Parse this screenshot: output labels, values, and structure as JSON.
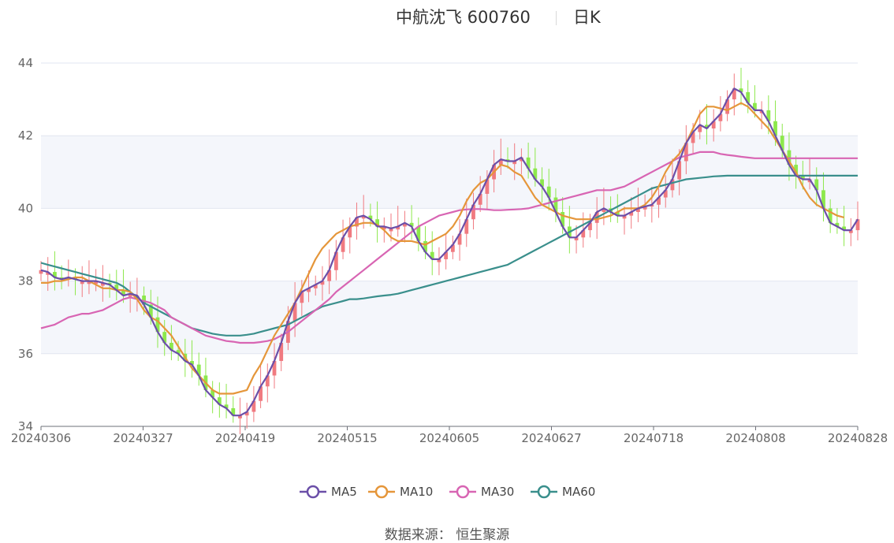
{
  "header": {
    "name": "中航沈飞 600760",
    "period": "日K"
  },
  "source": "数据来源：  恒生聚源",
  "colors": {
    "up": "#f07a80",
    "down": "#8de84c",
    "ma5": "#6b4fa8",
    "ma10": "#e5963a",
    "ma30": "#d865b3",
    "ma60": "#3a8f8c",
    "band": "#f4f6fb",
    "grid": "#e2e6f0"
  },
  "chart_data": {
    "type": "candlestick",
    "x_ticks": [
      "20240306",
      "20240327",
      "20240419",
      "20240515",
      "20240605",
      "20240627",
      "20240718",
      "20240808",
      "20240828"
    ],
    "ylim": [
      34,
      44
    ],
    "y_ticks": [
      "34",
      "36",
      "38",
      "40",
      "42",
      "44"
    ],
    "legend": [
      "MA5",
      "MA10",
      "MA30",
      "MA60"
    ],
    "legend_position": "bottom",
    "n_points": 120,
    "ma5": [
      38.3,
      38.25,
      38.1,
      38.05,
      38.1,
      38.05,
      38.0,
      38.0,
      38.0,
      37.95,
      37.9,
      37.75,
      37.6,
      37.65,
      37.6,
      37.35,
      37.0,
      36.6,
      36.3,
      36.1,
      36.0,
      35.8,
      35.7,
      35.4,
      35.0,
      34.8,
      34.6,
      34.5,
      34.3,
      34.3,
      34.4,
      34.7,
      35.1,
      35.4,
      35.8,
      36.3,
      36.9,
      37.4,
      37.7,
      37.8,
      37.9,
      38.0,
      38.3,
      38.8,
      39.2,
      39.5,
      39.75,
      39.8,
      39.7,
      39.5,
      39.5,
      39.45,
      39.5,
      39.6,
      39.5,
      39.1,
      38.8,
      38.6,
      38.6,
      38.8,
      39.0,
      39.3,
      39.7,
      40.1,
      40.4,
      40.8,
      41.2,
      41.35,
      41.3,
      41.3,
      41.4,
      41.1,
      40.8,
      40.6,
      40.3,
      39.9,
      39.5,
      39.2,
      39.2,
      39.4,
      39.6,
      39.9,
      40.0,
      39.9,
      39.8,
      39.8,
      39.9,
      40.0,
      40.05,
      40.1,
      40.3,
      40.5,
      40.8,
      41.3,
      41.8,
      42.1,
      42.3,
      42.2,
      42.4,
      42.6,
      43.0,
      43.3,
      43.2,
      42.9,
      42.7,
      42.7,
      42.4,
      42.0,
      41.6,
      41.2,
      40.9,
      40.8,
      40.8,
      40.5,
      40.0,
      39.6,
      39.5,
      39.4,
      39.4,
      39.7
    ],
    "ma10": [
      37.95,
      37.95,
      38.0,
      38.0,
      38.05,
      38.1,
      38.1,
      38.0,
      37.9,
      37.8,
      37.8,
      37.75,
      37.75,
      37.7,
      37.5,
      37.2,
      37.0,
      36.9,
      36.7,
      36.5,
      36.2,
      35.9,
      35.6,
      35.4,
      35.2,
      35.0,
      34.9,
      34.9,
      34.9,
      34.95,
      35.0,
      35.4,
      35.7,
      36.1,
      36.5,
      36.8,
      37.1,
      37.4,
      37.8,
      38.2,
      38.6,
      38.9,
      39.1,
      39.3,
      39.4,
      39.5,
      39.55,
      39.6,
      39.6,
      39.55,
      39.4,
      39.2,
      39.1,
      39.1,
      39.1,
      39.05,
      39.0,
      39.1,
      39.2,
      39.3,
      39.5,
      39.8,
      40.2,
      40.5,
      40.7,
      40.8,
      41.0,
      41.2,
      41.15,
      41.0,
      40.9,
      40.6,
      40.3,
      40.1,
      40.0,
      39.9,
      39.8,
      39.75,
      39.7,
      39.7,
      39.7,
      39.7,
      39.75,
      39.8,
      39.9,
      40.0,
      40.0,
      40.0,
      40.1,
      40.3,
      40.6,
      41.0,
      41.3,
      41.5,
      41.8,
      42.2,
      42.6,
      42.8,
      42.8,
      42.75,
      42.7,
      42.8,
      42.9,
      42.8,
      42.6,
      42.4,
      42.2,
      41.9,
      41.6,
      41.3,
      41.0,
      40.6,
      40.3,
      40.1,
      40.0,
      39.9,
      39.8,
      39.75
    ],
    "ma30": [
      36.7,
      36.75,
      36.8,
      36.9,
      37.0,
      37.05,
      37.1,
      37.1,
      37.15,
      37.2,
      37.3,
      37.4,
      37.5,
      37.55,
      37.5,
      37.45,
      37.4,
      37.3,
      37.2,
      37.0,
      36.9,
      36.8,
      36.7,
      36.6,
      36.5,
      36.45,
      36.4,
      36.35,
      36.33,
      36.3,
      36.3,
      36.3,
      36.32,
      36.35,
      36.4,
      36.5,
      36.6,
      36.75,
      36.9,
      37.05,
      37.2,
      37.35,
      37.5,
      37.7,
      37.85,
      38.0,
      38.15,
      38.3,
      38.45,
      38.6,
      38.75,
      38.9,
      39.05,
      39.2,
      39.35,
      39.5,
      39.6,
      39.7,
      39.8,
      39.85,
      39.9,
      39.95,
      39.97,
      39.98,
      39.98,
      39.97,
      39.95,
      39.95,
      39.96,
      39.97,
      39.98,
      40.0,
      40.05,
      40.1,
      40.15,
      40.2,
      40.25,
      40.3,
      40.35,
      40.4,
      40.45,
      40.5,
      40.5,
      40.5,
      40.55,
      40.6,
      40.7,
      40.8,
      40.9,
      41.0,
      41.1,
      41.2,
      41.3,
      41.4,
      41.45,
      41.5,
      41.55,
      41.55,
      41.55,
      41.5,
      41.47,
      41.45,
      41.42,
      41.4,
      41.38,
      41.38,
      41.38,
      41.38,
      41.38,
      41.38,
      41.38,
      41.38,
      41.38,
      41.38,
      41.38,
      41.38,
      41.38,
      41.38,
      41.38,
      41.38
    ],
    "ma60": [
      38.5,
      38.45,
      38.4,
      38.35,
      38.3,
      38.25,
      38.2,
      38.15,
      38.1,
      38.05,
      38.0,
      37.95,
      37.85,
      37.7,
      37.55,
      37.4,
      37.3,
      37.2,
      37.1,
      37.0,
      36.9,
      36.8,
      36.7,
      36.65,
      36.6,
      36.55,
      36.52,
      36.5,
      36.5,
      36.5,
      36.52,
      36.55,
      36.6,
      36.65,
      36.7,
      36.75,
      36.8,
      36.9,
      37.0,
      37.1,
      37.2,
      37.3,
      37.35,
      37.4,
      37.45,
      37.5,
      37.5,
      37.52,
      37.55,
      37.58,
      37.6,
      37.62,
      37.65,
      37.7,
      37.75,
      37.8,
      37.85,
      37.9,
      37.95,
      38.0,
      38.05,
      38.1,
      38.15,
      38.2,
      38.25,
      38.3,
      38.35,
      38.4,
      38.45,
      38.55,
      38.65,
      38.75,
      38.85,
      38.95,
      39.05,
      39.15,
      39.25,
      39.35,
      39.45,
      39.55,
      39.65,
      39.75,
      39.85,
      39.95,
      40.05,
      40.15,
      40.25,
      40.35,
      40.45,
      40.55,
      40.6,
      40.65,
      40.7,
      40.75,
      40.8,
      40.82,
      40.84,
      40.86,
      40.88,
      40.89,
      40.9,
      40.9,
      40.9,
      40.9,
      40.9,
      40.9,
      40.9,
      40.9,
      40.9,
      40.9,
      40.9,
      40.9,
      40.9,
      40.9,
      40.9,
      40.9,
      40.9,
      40.9,
      40.9,
      40.9
    ]
  }
}
